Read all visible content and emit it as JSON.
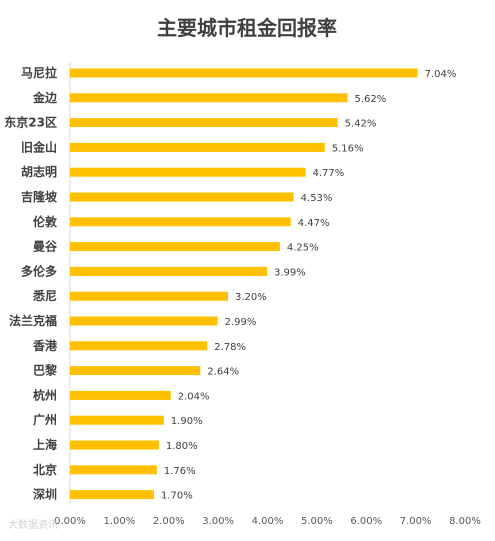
{
  "chart_data": {
    "type": "bar",
    "orientation": "horizontal",
    "title": "主要城市租金回报率",
    "categories": [
      "马尼拉",
      "金边",
      "东京23区",
      "旧金山",
      "胡志明",
      "吉隆坡",
      "伦敦",
      "曼谷",
      "多伦多",
      "悉尼",
      "法兰克福",
      "香港",
      "巴黎",
      "杭州",
      "广州",
      "上海",
      "北京",
      "深圳"
    ],
    "values": [
      7.04,
      5.62,
      5.42,
      5.16,
      4.77,
      4.53,
      4.47,
      4.25,
      3.99,
      3.2,
      2.99,
      2.78,
      2.64,
      2.04,
      1.9,
      1.8,
      1.76,
      1.7
    ],
    "value_labels": [
      "7.04%",
      "5.62%",
      "5.42%",
      "5.16%",
      "4.77%",
      "4.53%",
      "4.47%",
      "4.25%",
      "3.99%",
      "3.20%",
      "2.99%",
      "2.78%",
      "2.64%",
      "2.04%",
      "1.90%",
      "1.80%",
      "1.76%",
      "1.70%"
    ],
    "xlim": [
      0,
      8
    ],
    "xticks": [
      0,
      1,
      2,
      3,
      4,
      5,
      6,
      7,
      8
    ],
    "xtick_labels": [
      "0.00%",
      "1.00%",
      "2.00%",
      "3.00%",
      "4.00%",
      "5.00%",
      "6.00%",
      "7.00%",
      "8.00%"
    ],
    "grid": false,
    "legend": "none",
    "bar_color": "#FFC000"
  },
  "watermark_text": "大数据资讯"
}
